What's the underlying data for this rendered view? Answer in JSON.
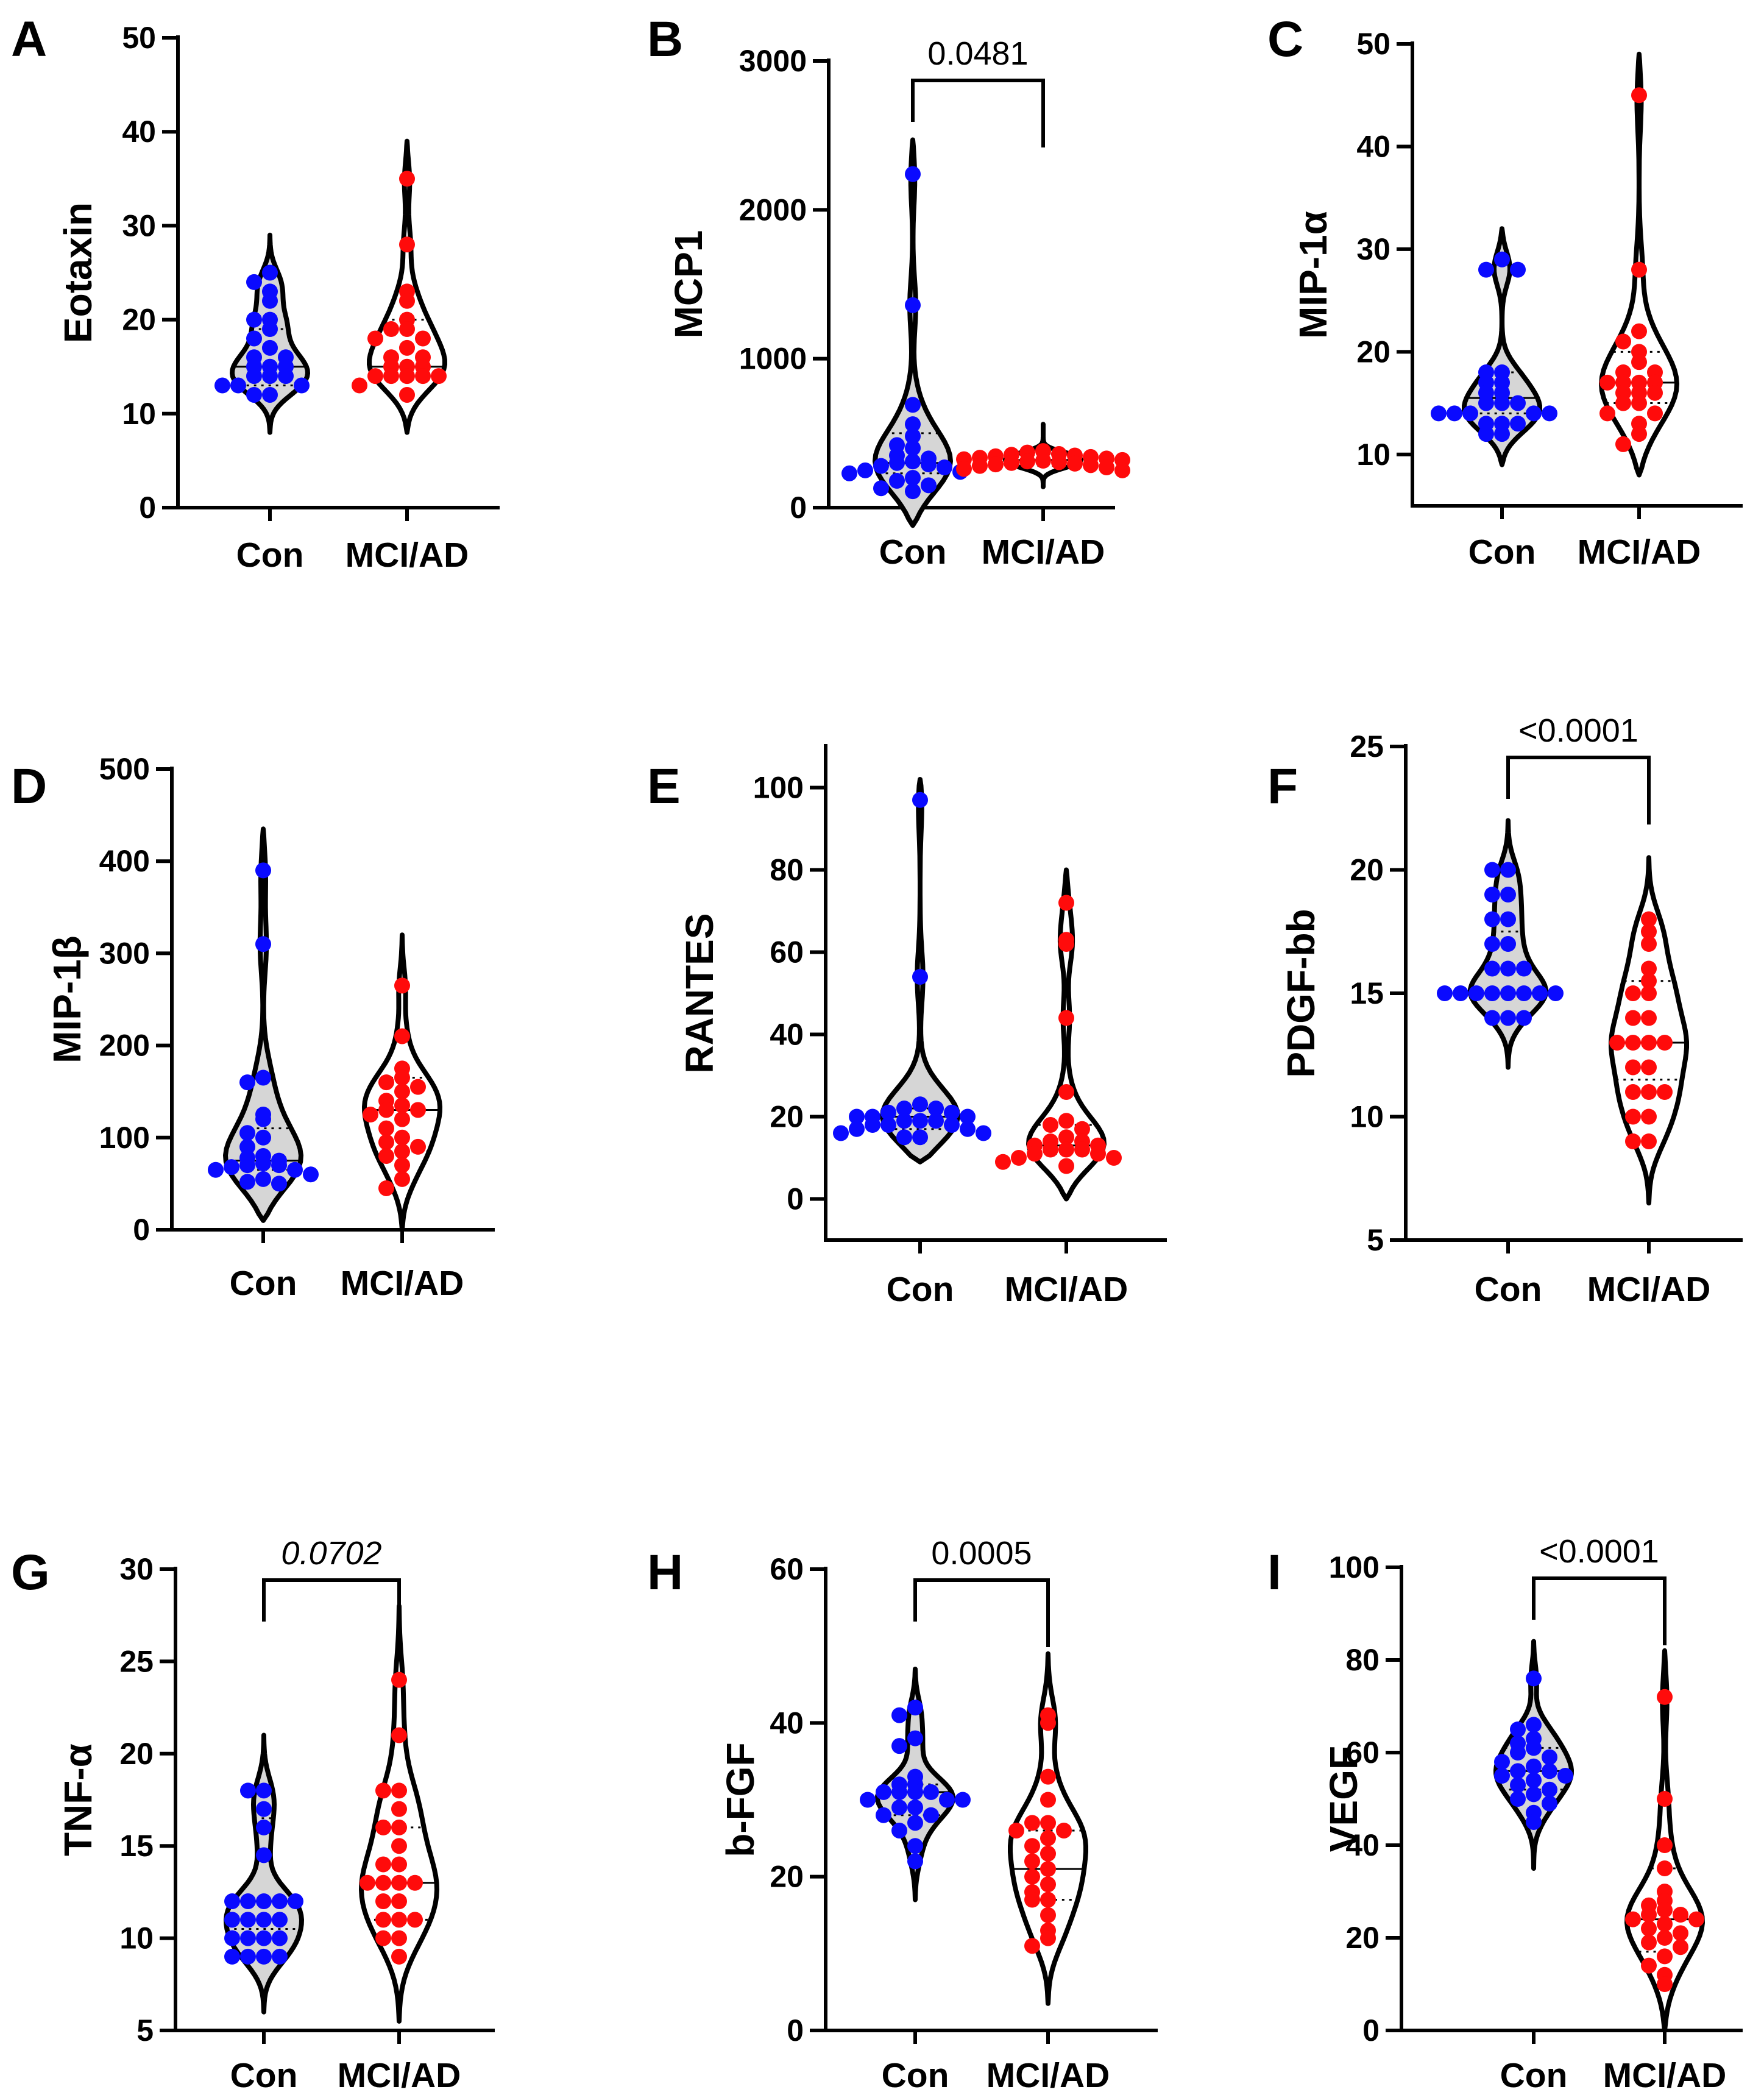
{
  "colors": {
    "con": "#0a0aff",
    "mci": "#ff0b0b",
    "violin_fill": "#d6d6d6",
    "stroke": "#000000"
  },
  "chart_data": [
    {
      "type": "violin",
      "panel": "A",
      "ylabel": "Eotaxin",
      "categories": [
        "Con",
        "MCI/AD"
      ],
      "ylim": [
        0,
        50
      ],
      "yticks": [
        0,
        10,
        20,
        30,
        40,
        50
      ],
      "ytick_labels": [
        "0",
        "10",
        "20",
        "30",
        "40",
        "50"
      ],
      "pvalue": null,
      "series": [
        {
          "name": "Con",
          "median": 15,
          "q1": 13,
          "q3": 19,
          "range": [
            8,
            29
          ],
          "points": [
            25,
            24,
            23,
            22,
            20,
            20,
            19,
            18,
            17,
            16,
            16,
            15,
            15,
            15,
            14,
            14,
            14,
            13,
            13,
            13,
            12,
            12
          ]
        },
        {
          "name": "MCI/AD",
          "median": 15,
          "q1": 14,
          "q3": 20,
          "range": [
            8,
            39
          ],
          "points": [
            35,
            28,
            23,
            22,
            20,
            19,
            19,
            18,
            18,
            17,
            16,
            16,
            15,
            15,
            15,
            14,
            14,
            14,
            14,
            14,
            13,
            12
          ]
        }
      ]
    },
    {
      "type": "violin",
      "panel": "B",
      "ylabel": "MCP1",
      "categories": [
        "Con",
        "MCI/AD"
      ],
      "ylim": [
        0,
        3000
      ],
      "yticks": [
        0,
        1000,
        2000,
        3000
      ],
      "ytick_labels": [
        "0",
        "1000",
        "2000",
        "3000"
      ],
      "pvalue": "0.0481",
      "series": [
        {
          "name": "Con",
          "median": 300,
          "q1": 230,
          "q3": 500,
          "range": [
            -120,
            2470
          ],
          "points": [
            2240,
            1360,
            690,
            560,
            480,
            420,
            400,
            350,
            330,
            310,
            300,
            290,
            280,
            270,
            250,
            240,
            230,
            200,
            180,
            150,
            130,
            110
          ]
        },
        {
          "name": "MCI/AD",
          "median": 320,
          "q1": 280,
          "q3": 360,
          "range": [
            140,
            560
          ],
          "points": [
            380,
            370,
            360,
            355,
            350,
            345,
            340,
            335,
            330,
            325,
            320,
            315,
            310,
            305,
            300,
            295,
            290,
            285,
            280,
            270,
            260,
            250
          ]
        }
      ]
    },
    {
      "type": "violin",
      "panel": "C",
      "ylabel": "MIP-1α",
      "categories": [
        "Con",
        "MCI/AD"
      ],
      "ylim": [
        5,
        50
      ],
      "yticks": [
        10,
        20,
        30,
        40,
        50
      ],
      "ytick_labels": [
        "10",
        "20",
        "30",
        "40",
        "50"
      ],
      "pvalue": null,
      "series": [
        {
          "name": "Con",
          "median": 15.5,
          "q1": 14,
          "q3": 18,
          "range": [
            9,
            32
          ],
          "points": [
            29,
            28,
            28,
            18,
            18,
            17,
            17,
            16,
            16,
            15,
            15,
            15,
            14,
            14,
            14,
            14,
            14,
            13,
            13,
            13,
            12,
            12
          ]
        },
        {
          "name": "MCI/AD",
          "median": 17,
          "q1": 15,
          "q3": 20,
          "range": [
            8,
            49
          ],
          "points": [
            45,
            28,
            22,
            21,
            20,
            19,
            18,
            18,
            17,
            17,
            17,
            17,
            16,
            16,
            16,
            15,
            15,
            14,
            14,
            13,
            12,
            11
          ]
        }
      ]
    },
    {
      "type": "violin",
      "panel": "D",
      "ylabel": "MIP-1β",
      "categories": [
        "Con",
        "MCI/AD"
      ],
      "ylim": [
        0,
        500
      ],
      "yticks": [
        0,
        100,
        200,
        300,
        400,
        500
      ],
      "ytick_labels": [
        "0",
        "100",
        "200",
        "300",
        "400",
        "500"
      ],
      "pvalue": null,
      "series": [
        {
          "name": "Con",
          "median": 75,
          "q1": 65,
          "q3": 110,
          "range": [
            10,
            435
          ],
          "points": [
            390,
            310,
            165,
            160,
            125,
            120,
            105,
            100,
            90,
            80,
            78,
            75,
            72,
            70,
            70,
            68,
            65,
            65,
            60,
            55,
            52,
            50
          ]
        },
        {
          "name": "MCI/AD",
          "median": 130,
          "q1": 85,
          "q3": 165,
          "range": [
            0,
            320
          ],
          "points": [
            265,
            210,
            175,
            165,
            160,
            155,
            150,
            140,
            135,
            130,
            130,
            125,
            120,
            110,
            100,
            95,
            90,
            85,
            80,
            70,
            55,
            45
          ]
        }
      ]
    },
    {
      "type": "violin",
      "panel": "E",
      "ylabel": "RANTES",
      "categories": [
        "Con",
        "MCI/AD"
      ],
      "ylim": [
        -10,
        110
      ],
      "yticks": [
        0,
        20,
        40,
        60,
        80,
        100
      ],
      "ytick_labels": [
        "0",
        "20",
        "40",
        "60",
        "80",
        "100"
      ],
      "pvalue": null,
      "series": [
        {
          "name": "Con",
          "median": 20,
          "q1": 17,
          "q3": 22,
          "range": [
            9,
            102
          ],
          "points": [
            97,
            54,
            23,
            22,
            22,
            21,
            21,
            20,
            20,
            20,
            19,
            19,
            19,
            18,
            18,
            18,
            17,
            17,
            16,
            16,
            15,
            15
          ]
        },
        {
          "name": "MCI/AD",
          "median": 13,
          "q1": 11,
          "q3": 18,
          "range": [
            0,
            80
          ],
          "points": [
            72,
            63,
            62,
            44,
            26,
            19,
            18,
            17,
            15,
            14,
            14,
            13,
            13,
            12,
            12,
            12,
            11,
            11,
            10,
            10,
            9,
            8
          ]
        }
      ]
    },
    {
      "type": "violin",
      "panel": "F",
      "ylabel": "PDGF-bb",
      "categories": [
        "Con",
        "MCI/AD"
      ],
      "ylim": [
        5,
        25
      ],
      "yticks": [
        5,
        10,
        15,
        20,
        25
      ],
      "ytick_labels": [
        "5",
        "10",
        "15",
        "20",
        "25"
      ],
      "pvalue": "<0.0001",
      "series": [
        {
          "name": "Con",
          "median": 15,
          "q1": 15,
          "q3": 17.5,
          "range": [
            12,
            22
          ],
          "points": [
            20,
            20,
            19,
            19,
            18,
            18,
            17,
            17,
            16,
            16,
            16,
            15,
            15,
            15,
            15,
            15,
            15,
            15,
            15,
            14,
            14,
            14
          ]
        },
        {
          "name": "MCI/AD",
          "median": 13,
          "q1": 11.5,
          "q3": 15.5,
          "range": [
            6.5,
            20.5
          ],
          "points": [
            18,
            17.5,
            17,
            16,
            15.5,
            15,
            15,
            14,
            14,
            13,
            13,
            13,
            13,
            12,
            12,
            11,
            11,
            11,
            10,
            10,
            9,
            9
          ]
        }
      ]
    },
    {
      "type": "violin",
      "panel": "G",
      "ylabel": "TNF-α",
      "categories": [
        "Con",
        "MCI/AD"
      ],
      "ylim": [
        5,
        30
      ],
      "yticks": [
        5,
        10,
        15,
        20,
        25,
        30
      ],
      "ytick_labels": [
        "5",
        "10",
        "15",
        "20",
        "25",
        "30"
      ],
      "pvalue": "0.0702",
      "series": [
        {
          "name": "Con",
          "median": 12,
          "q1": 10.5,
          "q3": 16.5,
          "range": [
            6,
            21
          ],
          "points": [
            18,
            18,
            17,
            16,
            14.5,
            12,
            12,
            12,
            12,
            12,
            11,
            11,
            11,
            11,
            10,
            10,
            10,
            10,
            9,
            9,
            9,
            9
          ]
        },
        {
          "name": "MCI/AD",
          "median": 13,
          "q1": 11,
          "q3": 16,
          "range": [
            5.5,
            28
          ],
          "points": [
            24,
            21,
            18,
            18,
            17,
            16,
            16,
            15,
            14,
            14,
            13,
            13,
            13,
            13,
            12,
            12,
            11,
            11,
            11,
            10,
            10,
            9
          ]
        }
      ]
    },
    {
      "type": "violin",
      "panel": "H",
      "ylabel": "b-FGF",
      "categories": [
        "Con",
        "MCI/AD"
      ],
      "ylim": [
        0,
        60
      ],
      "yticks": [
        0,
        20,
        40,
        60
      ],
      "ytick_labels": [
        "0",
        "20",
        "40",
        "60"
      ],
      "pvalue": "0.0005",
      "series": [
        {
          "name": "Con",
          "median": 31,
          "q1": 28,
          "q3": 32,
          "range": [
            17,
            47
          ],
          "points": [
            42,
            41,
            38,
            37,
            33,
            32,
            32,
            31,
            31,
            31,
            31,
            30,
            30,
            30,
            29,
            29,
            28,
            28,
            27,
            26,
            24,
            22
          ]
        },
        {
          "name": "MCI/AD",
          "median": 21,
          "q1": 17,
          "q3": 26,
          "range": [
            3.5,
            49
          ],
          "points": [
            41,
            40,
            33,
            30,
            27,
            27,
            26,
            26,
            25,
            24,
            23,
            22,
            21,
            20,
            19,
            18,
            17,
            17,
            15,
            13,
            12,
            11
          ]
        }
      ]
    },
    {
      "type": "violin",
      "panel": "I",
      "ylabel": "VEGF",
      "categories": [
        "Con",
        "MCI/AD"
      ],
      "ylim": [
        0,
        100
      ],
      "yticks": [
        0,
        20,
        40,
        60,
        80,
        100
      ],
      "ytick_labels": [
        "0",
        "20",
        "40",
        "60",
        "80",
        "100"
      ],
      "pvalue": "<0.0001",
      "series": [
        {
          "name": "Con",
          "median": 56,
          "q1": 52,
          "q3": 61,
          "range": [
            35,
            84
          ],
          "points": [
            76,
            66,
            65,
            63,
            62,
            61,
            60,
            59,
            58,
            57,
            56,
            56,
            55,
            55,
            54,
            53,
            52,
            51,
            50,
            49,
            47,
            45
          ]
        },
        {
          "name": "MCI/AD",
          "median": 24,
          "q1": 17,
          "q3": 35,
          "range": [
            0,
            82
          ],
          "points": [
            72,
            50,
            40,
            35,
            30,
            28,
            27,
            26,
            25,
            25,
            24,
            24,
            23,
            22,
            21,
            20,
            19,
            18,
            16,
            14,
            12,
            10
          ]
        }
      ]
    }
  ]
}
